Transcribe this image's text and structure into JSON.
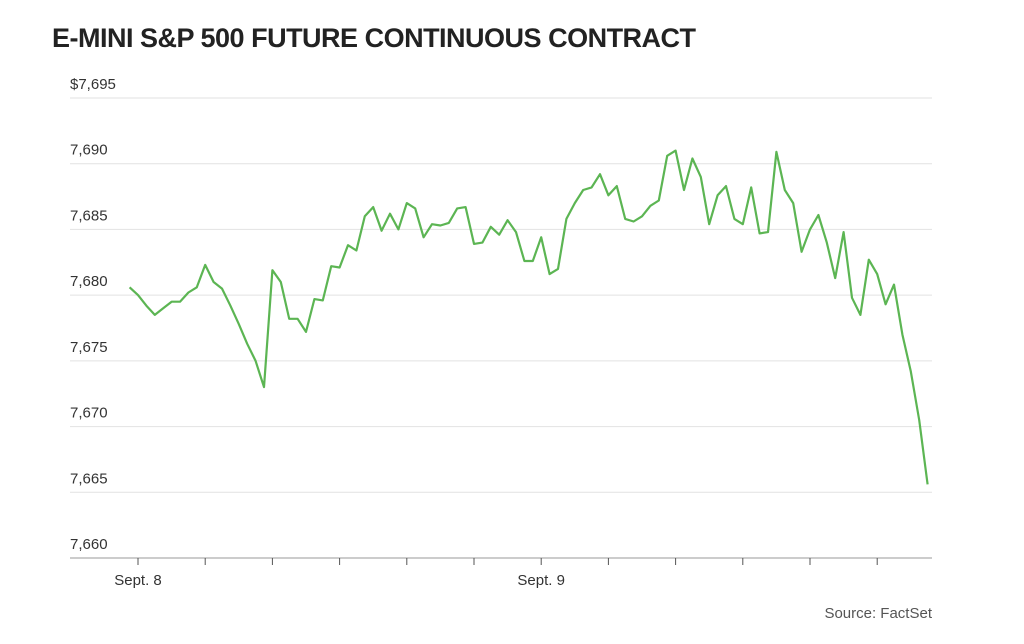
{
  "chart_data": {
    "type": "line",
    "title": "E-MINI S&P 500 FUTURE CONTINUOUS CONTRACT",
    "source": "Source: FactSet",
    "categories": [
      null,
      "Sept. 8",
      null,
      null,
      null,
      null,
      null,
      null,
      null,
      null,
      null,
      null,
      null,
      null,
      null,
      null,
      null,
      null,
      null,
      null,
      null,
      null,
      null,
      null,
      null,
      null,
      null,
      null,
      null,
      null,
      null,
      null,
      null,
      null,
      null,
      null,
      null,
      null,
      null,
      null,
      null,
      null,
      null,
      null,
      null,
      null,
      null,
      null,
      null,
      "Sept. 9",
      null,
      null,
      null,
      null,
      null,
      null,
      null,
      null,
      null,
      null,
      null,
      null,
      null,
      null,
      null,
      null,
      null,
      null,
      null,
      null,
      null,
      null,
      null,
      null,
      null,
      null,
      null,
      null,
      null,
      null,
      null,
      null,
      null,
      null,
      null,
      null,
      null,
      null,
      null,
      null,
      null,
      null,
      null,
      null,
      null,
      null
    ],
    "series": [
      {
        "name": "E-mini S&P 500",
        "color": "#5cb553",
        "values": [
          7680.6,
          7680.0,
          7679.2,
          7678.5,
          7679.0,
          7679.5,
          7679.5,
          7680.2,
          7680.6,
          7682.3,
          7681.0,
          7680.5,
          7679.2,
          7677.8,
          7676.3,
          7675.0,
          7673.0,
          7681.9,
          7681.0,
          7678.2,
          7678.2,
          7677.2,
          7679.7,
          7679.6,
          7682.2,
          7682.1,
          7683.8,
          7683.4,
          7686.0,
          7686.7,
          7684.9,
          7686.2,
          7685.0,
          7687.0,
          7686.6,
          7684.4,
          7685.4,
          7685.3,
          7685.5,
          7686.6,
          7686.7,
          7683.9,
          7684.0,
          7685.2,
          7684.6,
          7685.7,
          7684.8,
          7682.6,
          7682.6,
          7684.4,
          7681.6,
          7682.0,
          7685.8,
          7687.0,
          7688.0,
          7688.2,
          7689.2,
          7687.6,
          7688.3,
          7685.8,
          7685.6,
          7686.0,
          7686.8,
          7687.2,
          7690.6,
          7691.0,
          7688.0,
          7690.4,
          7689.0,
          7685.4,
          7687.6,
          7688.3,
          7685.8,
          7685.4,
          7688.2,
          7684.7,
          7684.8,
          7690.9,
          7688.0,
          7687.0,
          7683.3,
          7685.0,
          7686.1,
          7684.0,
          7681.3,
          7684.8,
          7679.8,
          7678.5,
          7682.7,
          7681.6,
          7679.3,
          7680.8,
          7677.0,
          7674.2,
          7670.5,
          7665.6
        ]
      }
    ],
    "ylim": [
      7660,
      7695
    ],
    "yticks": [
      {
        "value": 7660,
        "label": "7,660"
      },
      {
        "value": 7665,
        "label": "7,665"
      },
      {
        "value": 7670,
        "label": "7,670"
      },
      {
        "value": 7675,
        "label": "7,675"
      },
      {
        "value": 7680,
        "label": "7,680"
      },
      {
        "value": 7685,
        "label": "7,685"
      },
      {
        "value": 7690,
        "label": "7,690"
      },
      {
        "value": 7695,
        "label": "$7,695"
      }
    ],
    "grid": true
  }
}
